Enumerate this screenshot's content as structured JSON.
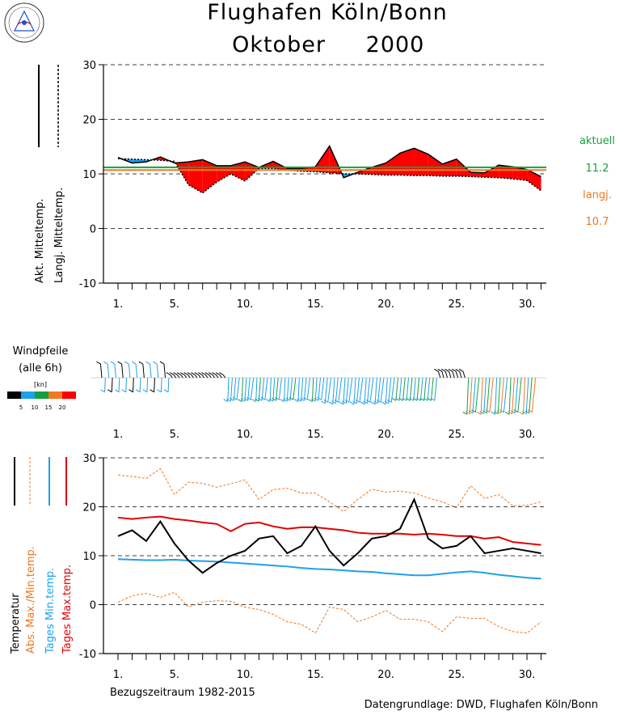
{
  "header": {
    "title_line1": "Flughafen Köln/Bonn",
    "month": "Oktober",
    "year": "2000"
  },
  "colors": {
    "above": "#ff0000",
    "below": "#1ea0ec",
    "aktuell": "#14a03c",
    "langj": "#f07820",
    "abs": "#f07820",
    "tages_min": "#1ea0ec",
    "tages_max": "#e00000",
    "temp": "#000000"
  },
  "panel1": {
    "legend_actual": "Akt. Mitteltemp.",
    "legend_longterm": "Langj. Mitteltemp.",
    "aktuell_label": "aktuell",
    "aktuell_value": "11.2",
    "langj_label": "langj.",
    "langj_value": "10.7"
  },
  "panel2": {
    "title_line1": "Windpfeile",
    "title_line2": "(alle 6h)",
    "unit": "[kn]",
    "scale": [
      {
        "label": "5",
        "color": "#000000"
      },
      {
        "label": "10",
        "color": "#1ea0ec"
      },
      {
        "label": "15",
        "color": "#14a03c"
      },
      {
        "label": "20",
        "color": "#f07820"
      },
      {
        "label": "",
        "color": "#ff0000"
      }
    ]
  },
  "panel3": {
    "legend_temp": "Temperatur",
    "legend_abs": "Abs. Max./Min.temp.",
    "legend_tages_min": "Tages Min.temp.",
    "legend_tages_max": "Tages Max.temp."
  },
  "footer": {
    "reference_period": "Bezugszeitraum 1982-2015",
    "source": "Datengrundlage: DWD, Flughafen Köln/Bonn"
  },
  "chart_data": [
    {
      "type": "area",
      "title": "Flughafen Köln/Bonn Oktober 2000",
      "xlabel": "",
      "ylabel": "Akt. Mitteltemp. / Langj. Mitteltemp.",
      "x_ticks": [
        "1.",
        "5.",
        "10.",
        "15.",
        "20.",
        "25.",
        "30."
      ],
      "ylim": [
        -10,
        30
      ],
      "y_ticks": [
        "-10",
        "0",
        "10",
        "20",
        "30"
      ],
      "grid": true,
      "x": [
        1,
        2,
        3,
        4,
        5,
        6,
        7,
        8,
        9,
        10,
        11,
        12,
        13,
        14,
        15,
        16,
        17,
        18,
        19,
        20,
        21,
        22,
        23,
        24,
        25,
        26,
        27,
        28,
        29,
        30,
        31
      ],
      "series": [
        {
          "name": "Akt. Mitteltemp.",
          "values": [
            13.0,
            12.0,
            12.2,
            13.1,
            12.0,
            12.2,
            12.6,
            11.5,
            11.5,
            12.2,
            11.2,
            12.3,
            11.0,
            11.0,
            11.3,
            15.1,
            9.3,
            10.3,
            11.2,
            12.0,
            13.8,
            14.7,
            13.6,
            11.8,
            12.7,
            10.3,
            10.2,
            11.6,
            11.3,
            10.8,
            9.5
          ]
        },
        {
          "name": "Langj. Mitteltemp.",
          "values": [
            12.8,
            12.7,
            12.6,
            12.5,
            12.3,
            8.0,
            6.5,
            8.5,
            10.0,
            8.7,
            11.0,
            11.0,
            10.7,
            10.5,
            10.4,
            10.2,
            10.0,
            10.0,
            9.9,
            9.8,
            9.8,
            9.7,
            9.7,
            9.6,
            9.6,
            9.5,
            9.4,
            9.3,
            9.1,
            8.8,
            6.9
          ]
        }
      ],
      "reference_lines": [
        {
          "label": "aktuell",
          "value": 11.2
        },
        {
          "label": "langj.",
          "value": 10.7
        }
      ]
    },
    {
      "type": "other",
      "title": "Windpfeile (alle 6h)",
      "x_ticks": [
        "1.",
        "5.",
        "10.",
        "15.",
        "20.",
        "25.",
        "30."
      ],
      "legend_unit": "[kn]",
      "legend_bins": [
        "5",
        "10",
        "15",
        "20"
      ]
    },
    {
      "type": "line",
      "title": "",
      "xlabel": "Bezugszeitraum 1982-2015",
      "x_ticks": [
        "1.",
        "5.",
        "10.",
        "15.",
        "20.",
        "25.",
        "30."
      ],
      "ylim": [
        -10,
        30
      ],
      "y_ticks": [
        "-10",
        "0",
        "10",
        "20",
        "30"
      ],
      "grid": true,
      "x": [
        1,
        2,
        3,
        4,
        5,
        6,
        7,
        8,
        9,
        10,
        11,
        12,
        13,
        14,
        15,
        16,
        17,
        18,
        19,
        20,
        21,
        22,
        23,
        24,
        25,
        26,
        27,
        28,
        29,
        30,
        31
      ],
      "series": [
        {
          "name": "Abs. Max./Min.temp.",
          "values": [
            26.5,
            26.2,
            25.8,
            27.8,
            22.5,
            25.0,
            24.8,
            24.0,
            24.7,
            25.5,
            21.5,
            23.5,
            23.8,
            22.8,
            22.8,
            21.0,
            19.0,
            21.5,
            23.6,
            23.0,
            23.2,
            22.8,
            21.8,
            21.0,
            19.8,
            24.3,
            21.7,
            22.5,
            20.2,
            20.3,
            21.0
          ]
        },
        {
          "name": "Abs. Max./Min.temp. (min)",
          "values": [
            0.5,
            1.8,
            2.3,
            1.5,
            2.5,
            -0.5,
            0.5,
            0.8,
            0.7,
            -0.5,
            -1.0,
            -2.0,
            -3.5,
            -4.0,
            -5.8,
            -0.5,
            -1.0,
            -3.5,
            -2.5,
            -1.2,
            -3.0,
            -3.0,
            -3.5,
            -5.5,
            -2.5,
            -2.8,
            -2.8,
            -4.5,
            -5.5,
            -5.8,
            -3.5
          ]
        },
        {
          "name": "Tages Max.temp.",
          "values": [
            17.8,
            17.5,
            17.8,
            18.0,
            17.5,
            17.2,
            16.8,
            16.5,
            15.0,
            16.5,
            16.8,
            16.0,
            15.5,
            15.8,
            15.8,
            15.5,
            15.2,
            14.7,
            14.5,
            14.5,
            14.5,
            14.3,
            14.5,
            14.3,
            14.0,
            14.0,
            13.5,
            13.8,
            12.8,
            12.5,
            12.2
          ]
        },
        {
          "name": "Tages Min.temp.",
          "values": [
            9.3,
            9.2,
            9.1,
            9.1,
            9.2,
            9.0,
            8.9,
            8.8,
            8.6,
            8.4,
            8.2,
            8.0,
            7.8,
            7.5,
            7.3,
            7.2,
            7.0,
            6.8,
            6.7,
            6.4,
            6.2,
            6.0,
            6.0,
            6.3,
            6.6,
            6.8,
            6.5,
            6.1,
            5.8,
            5.5,
            5.3
          ]
        },
        {
          "name": "Temperatur",
          "values": [
            14.0,
            15.2,
            13.0,
            17.0,
            12.5,
            9.0,
            6.5,
            8.5,
            10.0,
            11.0,
            13.5,
            14.0,
            10.5,
            12.0,
            16.0,
            11.0,
            8.0,
            10.5,
            13.5,
            14.0,
            15.5,
            21.5,
            13.5,
            11.5,
            12.0,
            14.0,
            10.5,
            11.0,
            11.5,
            11.0,
            10.5
          ]
        }
      ]
    }
  ]
}
